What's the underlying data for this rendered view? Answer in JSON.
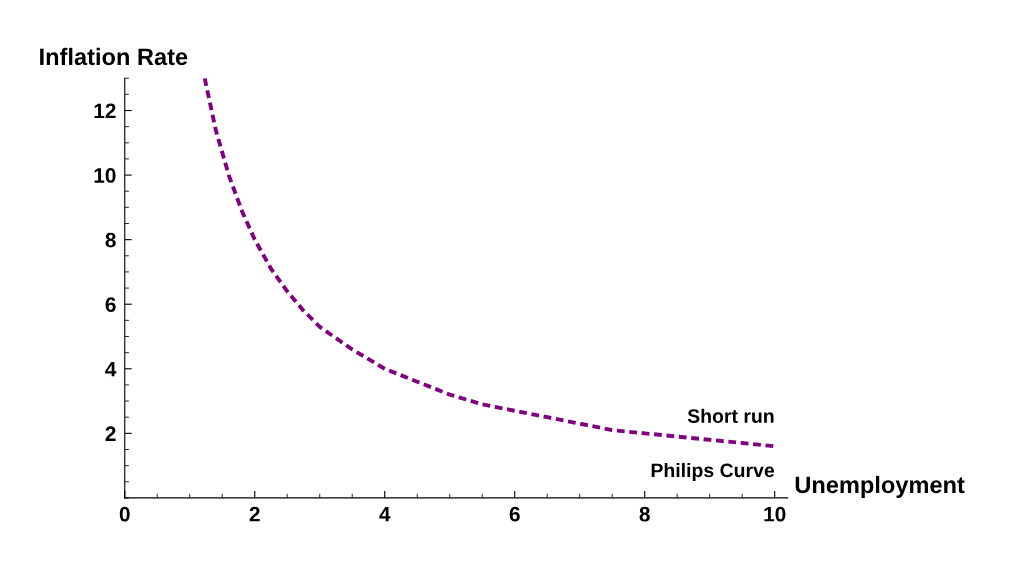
{
  "chart_data": {
    "type": "line",
    "xlabel": "Unemployment",
    "ylabel": "Inflation Rate",
    "x": [
      1.23,
      1.4,
      1.6,
      1.8,
      2,
      2.25,
      2.5,
      2.75,
      3,
      3.5,
      4,
      4.5,
      5,
      5.5,
      6,
      6.5,
      7,
      7.5,
      8,
      8.5,
      9,
      9.5,
      10
    ],
    "series": [
      {
        "color": "#800080",
        "values": [
          13,
          11.4,
          10,
          8.9,
          8,
          7.1,
          6.4,
          5.8,
          5.3,
          4.6,
          4,
          3.6,
          3.2,
          2.9,
          2.7,
          2.5,
          2.3,
          2.1,
          2,
          1.9,
          1.8,
          1.7,
          1.6
        ]
      }
    ],
    "annotations": [
      "Short run",
      "Philips Curve"
    ],
    "xlim": [
      0,
      10.2
    ],
    "ylim": [
      0,
      13
    ],
    "xticks": [
      0,
      2,
      4,
      6,
      8,
      10
    ],
    "yticks": [
      2,
      4,
      6,
      8,
      10,
      12
    ],
    "line_style": "dashed",
    "marker": "none",
    "grid": false,
    "legend": false
  }
}
